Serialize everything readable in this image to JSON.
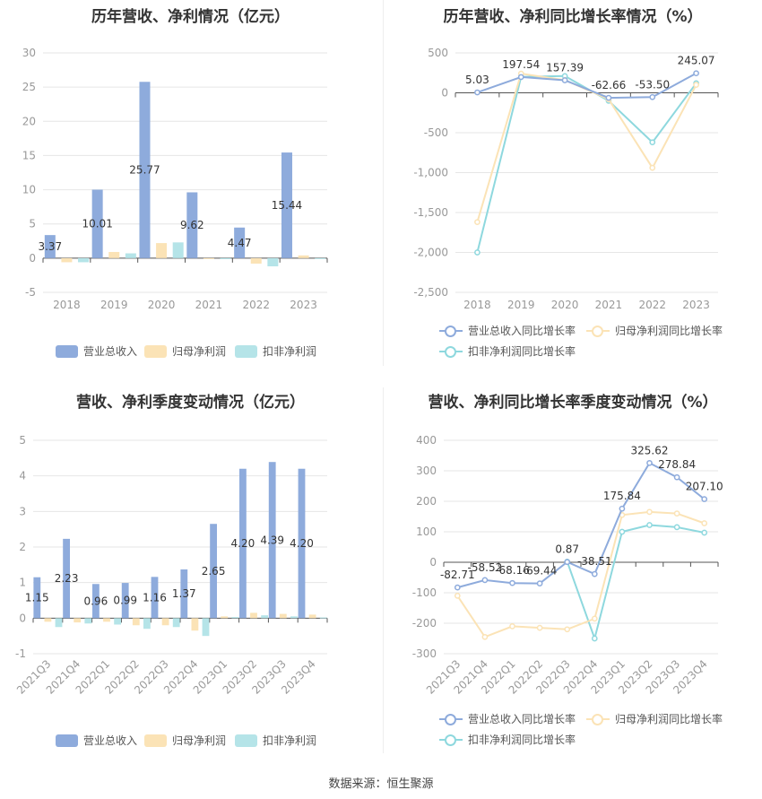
{
  "charts": [
    {
      "type": "bar",
      "title": "历年营收、净利情况（亿元）",
      "categories": [
        "2018",
        "2019",
        "2020",
        "2021",
        "2022",
        "2023"
      ],
      "ylim": [
        -5,
        30
      ],
      "yticks": [
        -5,
        0,
        5,
        10,
        15,
        20,
        25,
        30
      ],
      "series": [
        {
          "name": "营业总收入",
          "color": "#8eabdc",
          "values": [
            3.37,
            10.01,
            25.77,
            9.62,
            4.47,
            15.44
          ]
        },
        {
          "name": "归母净利润",
          "color": "#fbe3b6",
          "values": [
            -0.6,
            0.9,
            2.2,
            -0.1,
            -0.8,
            0.4
          ]
        },
        {
          "name": "扣非净利润",
          "color": "#b5e4e8",
          "values": [
            -0.6,
            0.7,
            2.3,
            -0.15,
            -1.2,
            -0.1
          ]
        }
      ],
      "data_labels": [
        "3.37",
        "10.01",
        "25.77",
        "9.62",
        "4.47",
        "15.44"
      ],
      "legend": "bottom"
    },
    {
      "type": "line",
      "title": "历年营收、净利同比增长率情况（%）",
      "categories": [
        "2018",
        "2019",
        "2020",
        "2021",
        "2022",
        "2023"
      ],
      "ylim": [
        -2500,
        500
      ],
      "yticks": [
        -2500,
        -2000,
        -1500,
        -1000,
        -500,
        0,
        500
      ],
      "ytick_labels": [
        "-2,500",
        "-2,000",
        "-1,500",
        "-1,000",
        "-500",
        "0",
        "500"
      ],
      "series": [
        {
          "name": "营业总收入同比增长率",
          "color": "#8eabdc",
          "values": [
            5.03,
            197.54,
            157.39,
            -62.66,
            -53.5,
            245.07
          ]
        },
        {
          "name": "归母净利润同比增长率",
          "color": "#fbe3b6",
          "values": [
            -1620,
            240,
            160,
            -80,
            -940,
            100
          ]
        },
        {
          "name": "扣非净利润同比增长率",
          "color": "#8ed8de",
          "values": [
            -2000,
            200,
            210,
            -100,
            -620,
            120
          ]
        }
      ],
      "data_labels": [
        "5.03",
        "197.54",
        "157.39",
        "-62.66",
        "-53.50",
        "245.07"
      ],
      "legend": "bottom"
    },
    {
      "type": "bar",
      "title": "营收、净利季度变动情况（亿元）",
      "categories": [
        "2021Q3",
        "2021Q4",
        "2022Q1",
        "2022Q2",
        "2022Q3",
        "2022Q4",
        "2023Q1",
        "2023Q2",
        "2023Q3",
        "2023Q4"
      ],
      "ylim": [
        -1,
        5
      ],
      "yticks": [
        -1,
        0,
        1,
        2,
        3,
        4,
        5
      ],
      "series": [
        {
          "name": "营业总收入",
          "color": "#8eabdc",
          "values": [
            1.15,
            2.23,
            0.96,
            0.99,
            1.16,
            1.37,
            2.65,
            4.2,
            4.39,
            4.2
          ]
        },
        {
          "name": "归母净利润",
          "color": "#fbe3b6",
          "values": [
            -0.1,
            -0.12,
            -0.1,
            -0.2,
            -0.2,
            -0.35,
            0.05,
            0.15,
            0.12,
            0.1
          ]
        },
        {
          "name": "扣非净利润",
          "color": "#b5e4e8",
          "values": [
            -0.25,
            -0.15,
            -0.18,
            -0.3,
            -0.25,
            -0.5,
            0.03,
            0.08,
            0.05,
            0.02
          ]
        }
      ],
      "data_labels": [
        "1.15",
        "2.23",
        "0.96",
        "0.99",
        "1.16",
        "1.37",
        "2.65",
        "4.20",
        "4.39",
        "4.20"
      ],
      "legend": "bottom"
    },
    {
      "type": "line",
      "title": "营收、净利同比增长率季度变动情况（%）",
      "categories": [
        "2021Q3",
        "2021Q4",
        "2022Q1",
        "2022Q2",
        "2022Q3",
        "2022Q4",
        "2023Q1",
        "2023Q2",
        "2023Q3",
        "2023Q4"
      ],
      "ylim": [
        -300,
        400
      ],
      "yticks": [
        -300,
        -200,
        -100,
        0,
        100,
        200,
        300,
        400
      ],
      "ytick_labels": [
        "-300",
        "-200",
        "-100",
        "0",
        "100",
        "200",
        "300",
        "400"
      ],
      "series": [
        {
          "name": "营业总收入同比增长率",
          "color": "#8eabdc",
          "values": [
            -82.71,
            -58.52,
            -68.16,
            -69.44,
            0.87,
            -38.51,
            175.84,
            325.62,
            278.84,
            207.1
          ]
        },
        {
          "name": "归母净利润同比增长率",
          "color": "#fbe3b6",
          "values": [
            -110,
            -245,
            -210,
            -215,
            -220,
            -185,
            155,
            165,
            160,
            128
          ]
        },
        {
          "name": "扣非净利润同比增长率",
          "color": "#8ed8de",
          "values": [
            null,
            null,
            null,
            null,
            2,
            -250,
            100,
            122,
            115,
            97
          ]
        }
      ],
      "data_labels": [
        "-82.71",
        "-58.52",
        "-68.16",
        "-69.44",
        "0.87",
        "-38.51",
        "175.84",
        "325.62",
        "278.84",
        "207.10"
      ],
      "legend": "bottom"
    }
  ],
  "source": "数据来源：恒生聚源"
}
